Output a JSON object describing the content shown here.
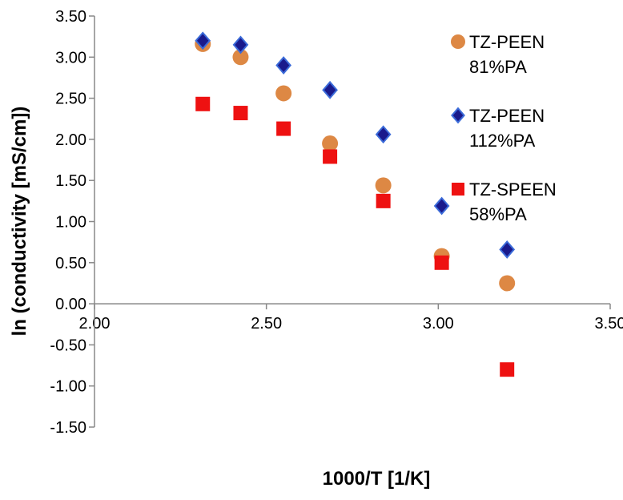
{
  "chart_data": {
    "type": "scatter",
    "xlabel": "1000/T [1/K]",
    "ylabel": "ln (conductivity [mS/cm])",
    "xlim": [
      2.0,
      3.5
    ],
    "ylim": [
      -1.5,
      3.5
    ],
    "x_ticks": [
      "2.00",
      "2.50",
      "3.00",
      "3.50"
    ],
    "y_ticks": [
      "3.50",
      "3.00",
      "2.50",
      "2.00",
      "1.50",
      "1.00",
      "0.50",
      "0.00",
      "-0.50",
      "-1.00",
      "-1.50"
    ],
    "grid": false,
    "legend_position": "top-right",
    "series": [
      {
        "name": [
          "TZ-PEEN",
          "81%PA"
        ],
        "marker": "circle",
        "color": "#DD8844",
        "x": [
          2.315,
          2.425,
          2.55,
          2.685,
          2.84,
          3.01,
          3.2
        ],
        "y": [
          3.16,
          3.0,
          2.56,
          1.95,
          1.44,
          0.58,
          0.25
        ]
      },
      {
        "name": [
          "TZ-PEEN",
          "112%PA"
        ],
        "marker": "diamond",
        "color": "#1A1A8C",
        "x": [
          2.315,
          2.425,
          2.55,
          2.685,
          2.84,
          3.01,
          3.2
        ],
        "y": [
          3.2,
          3.15,
          2.9,
          2.6,
          2.06,
          1.19,
          0.66
        ]
      },
      {
        "name": [
          "TZ-SPEEN",
          "58%PA"
        ],
        "marker": "square",
        "color": "#EE1111",
        "x": [
          2.315,
          2.425,
          2.55,
          2.685,
          2.84,
          3.01,
          3.2
        ],
        "y": [
          2.43,
          2.32,
          2.13,
          1.79,
          1.25,
          0.5,
          -0.8
        ]
      }
    ]
  }
}
